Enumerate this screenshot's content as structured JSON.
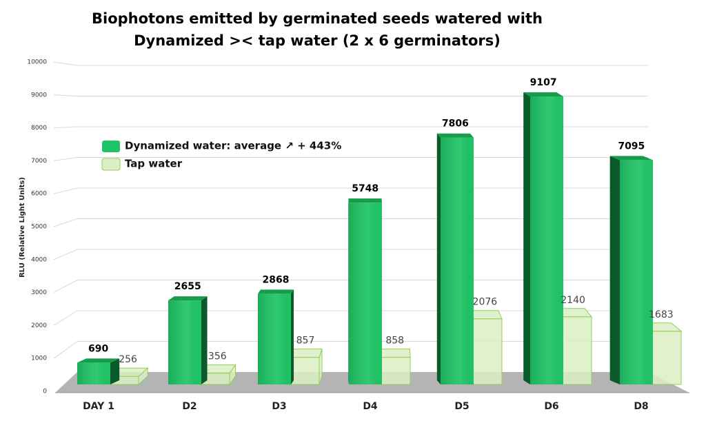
{
  "chart_data": {
    "type": "bar3d",
    "title": [
      "Biophotons emitted by germinated seeds watered with",
      "Dynamized >< tap water (2 x 6 germinators)"
    ],
    "y_label": "RLU (Relative Light Units)",
    "categories": [
      "DAY 1",
      "D2",
      "D3",
      "D4",
      "D5",
      "D6",
      "D8"
    ],
    "series": [
      {
        "name": "Dynamized water: average ↗ + 443%",
        "color": "#1fc466",
        "values": [
          690,
          2655,
          2868,
          5748,
          7806,
          9107,
          7095
        ]
      },
      {
        "name": "Tap water",
        "color": "#dcefc6",
        "values": [
          256,
          356,
          857,
          858,
          2076,
          2140,
          1683
        ]
      }
    ],
    "ylim": [
      0,
      10000
    ],
    "yticks": [
      0,
      1000,
      2000,
      3000,
      4000,
      5000,
      6000,
      7000,
      8000,
      9000,
      10000
    ],
    "grid": true
  }
}
